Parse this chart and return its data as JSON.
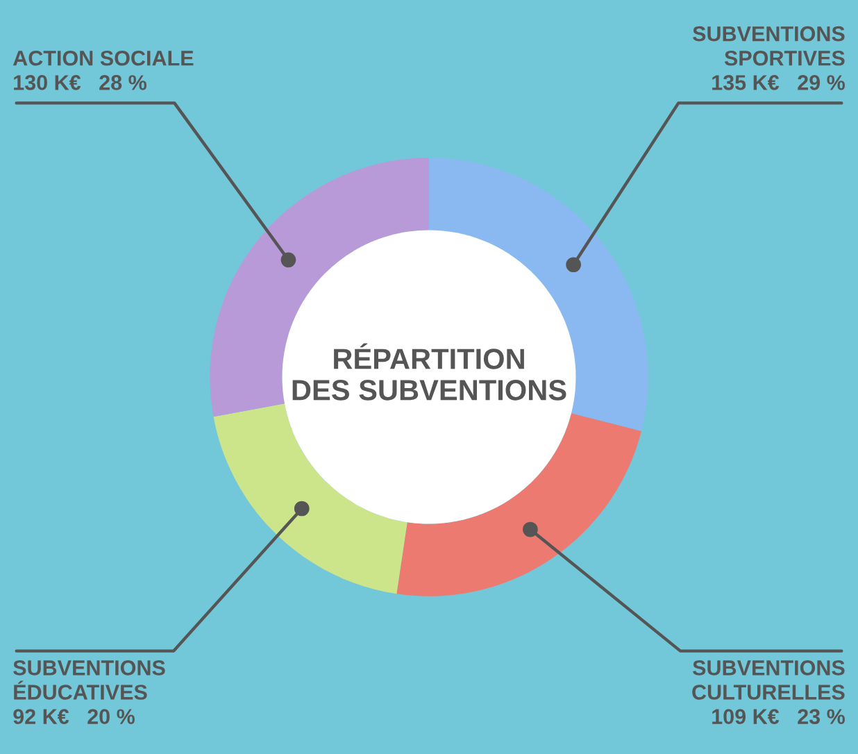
{
  "chart_data": {
    "type": "donut",
    "title": "RÉPARTITION\nDES SUBVENTIONS",
    "categories": [
      "SUBVENTIONS\nSPORTIVES",
      "SUBVENTIONS\nCULTURELLES",
      "SUBVENTIONS\nÉDUCATIVES",
      "ACTION SOCIALE"
    ],
    "values": [
      135,
      109,
      92,
      130
    ],
    "colors": [
      "#8ab8f0",
      "#ec7a70",
      "#cde58a",
      "#b89ad8"
    ],
    "value_labels": [
      "135 K€   29 %",
      "109 K€   23 %",
      "92 K€   20 %",
      "130 K€   28 %"
    ]
  }
}
